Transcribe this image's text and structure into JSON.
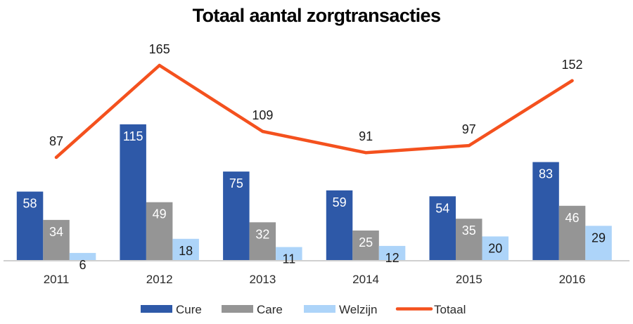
{
  "chart_data": {
    "type": "bar",
    "title": "Totaal aantal zorgtransacties",
    "xlabel": "",
    "ylabel": "",
    "ylim": [
      0,
      215
    ],
    "grid": false,
    "categories": [
      "2011",
      "2012",
      "2013",
      "2014",
      "2015",
      "2016"
    ],
    "series": [
      {
        "name": "Cure",
        "kind": "bar",
        "color": "#2E59A8",
        "label_color": "#ffffff",
        "values": [
          58,
          115,
          75,
          59,
          54,
          83
        ]
      },
      {
        "name": "Care",
        "kind": "bar",
        "color": "#959595",
        "label_color": "#ffffff",
        "values": [
          34,
          49,
          32,
          25,
          35,
          46
        ]
      },
      {
        "name": "Welzijn",
        "kind": "bar",
        "color": "#ADD4F9",
        "label_color": "#1a1a1a",
        "values": [
          6,
          18,
          11,
          12,
          20,
          29
        ]
      },
      {
        "name": "Totaal",
        "kind": "line",
        "color": "#F4511E",
        "label_color": "#1a1a1a",
        "values": [
          87,
          165,
          109,
          91,
          97,
          152
        ]
      }
    ],
    "legend": {
      "position": "bottom",
      "entries": [
        "Cure",
        "Care",
        "Welzijn",
        "Totaal"
      ]
    },
    "data_labels": true,
    "axis_color": "#d0d0d0"
  }
}
